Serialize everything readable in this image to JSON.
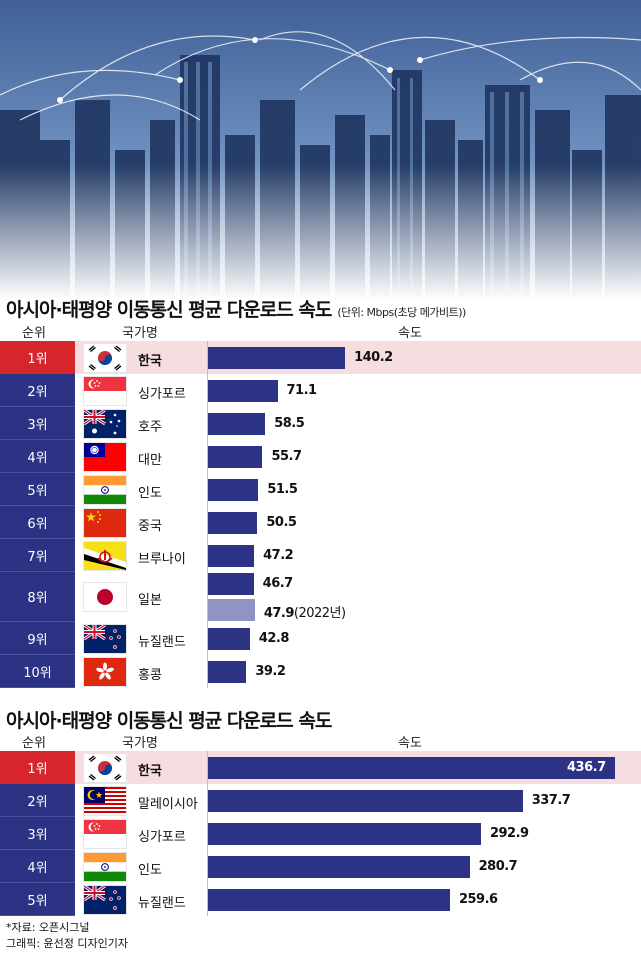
{
  "chart_data": [
    {
      "type": "bar",
      "orientation": "horizontal",
      "title": "아시아·태평양 이동통신 평균 다운로드 속도",
      "unit_note": "(단위: Mbps(초당 메가비트))",
      "headers": {
        "rank": "순위",
        "country": "국가명",
        "speed": "속도"
      },
      "xlim": [
        0,
        436.7
      ],
      "rows": [
        {
          "rank": "1위",
          "country": "한국",
          "flag": "korea-flag",
          "values": [
            {
              "value": 140.2,
              "label": "140.2"
            }
          ]
        },
        {
          "rank": "2위",
          "country": "싱가포르",
          "flag": "singapore-flag",
          "values": [
            {
              "value": 71.1,
              "label": "71.1"
            }
          ]
        },
        {
          "rank": "3위",
          "country": "호주",
          "flag": "australia-flag",
          "values": [
            {
              "value": 58.5,
              "label": "58.5"
            }
          ]
        },
        {
          "rank": "4위",
          "country": "대만",
          "flag": "taiwan-flag",
          "values": [
            {
              "value": 55.7,
              "label": "55.7"
            }
          ]
        },
        {
          "rank": "5위",
          "country": "인도",
          "flag": "india-flag",
          "values": [
            {
              "value": 51.5,
              "label": "51.5"
            }
          ]
        },
        {
          "rank": "6위",
          "country": "중국",
          "flag": "china-flag",
          "values": [
            {
              "value": 50.5,
              "label": "50.5"
            }
          ]
        },
        {
          "rank": "7위",
          "country": "브루나이",
          "flag": "brunei-flag",
          "values": [
            {
              "value": 47.2,
              "label": "47.2"
            }
          ]
        },
        {
          "rank": "8위",
          "country": "일본",
          "flag": "japan-flag",
          "values": [
            {
              "value": 46.7,
              "label": "46.7"
            },
            {
              "value": 47.9,
              "label": "47.9",
              "note": "(2022년)",
              "light": true
            }
          ]
        },
        {
          "rank": "9위",
          "country": "뉴질랜드",
          "flag": "newzealand-flag",
          "values": [
            {
              "value": 42.8,
              "label": "42.8"
            }
          ]
        },
        {
          "rank": "10위",
          "country": "홍콩",
          "flag": "hongkong-flag",
          "values": [
            {
              "value": 39.2,
              "label": "39.2"
            }
          ]
        }
      ]
    },
    {
      "type": "bar",
      "orientation": "horizontal",
      "title": "아시아·태평양 이동통신 평균 다운로드 속도",
      "headers": {
        "rank": "순위",
        "country": "국가명",
        "speed": "속도"
      },
      "xlim": [
        0,
        436.7
      ],
      "rows": [
        {
          "rank": "1위",
          "country": "한국",
          "flag": "korea-flag",
          "values": [
            {
              "value": 436.7,
              "label": "436.7"
            }
          ]
        },
        {
          "rank": "2위",
          "country": "말레이시아",
          "flag": "malaysia-flag",
          "values": [
            {
              "value": 337.7,
              "label": "337.7"
            }
          ]
        },
        {
          "rank": "3위",
          "country": "싱가포르",
          "flag": "singapore-flag",
          "values": [
            {
              "value": 292.9,
              "label": "292.9"
            }
          ]
        },
        {
          "rank": "4위",
          "country": "인도",
          "flag": "india-flag",
          "values": [
            {
              "value": 280.7,
              "label": "280.7"
            }
          ]
        },
        {
          "rank": "5위",
          "country": "뉴질랜드",
          "flag": "newzealand-flag",
          "values": [
            {
              "value": 259.6,
              "label": "259.6"
            }
          ]
        }
      ]
    }
  ],
  "source_lines": [
    "*자료: 오픈시그널",
    "그래픽: 윤선정 디자인기자"
  ],
  "colors": {
    "bar": "#2c3384",
    "bar_light": "#8f94c2",
    "highlight": "#d6262c",
    "highlight_bg": "#f5dde0"
  }
}
